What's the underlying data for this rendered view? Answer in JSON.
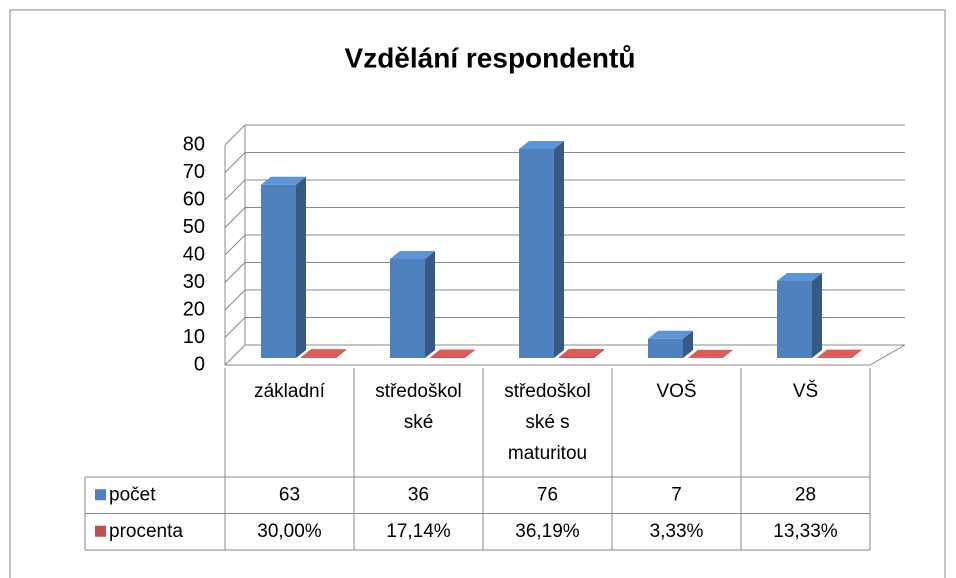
{
  "chart_data": {
    "type": "bar3d",
    "title": "Vzdělání respondentů",
    "categories": [
      "základní",
      "středoškolské",
      "středoškolské s maturitou",
      "VOŠ",
      "VŠ"
    ],
    "series": [
      {
        "name": "počet",
        "color": "#4f81bd",
        "values": [
          63,
          36,
          76,
          7,
          28
        ]
      },
      {
        "name": "procenta",
        "color": "#c0504d",
        "values": [
          0.3,
          0.1714,
          0.3619,
          0.0333,
          0.1333
        ],
        "value_labels": [
          "30,00%",
          "17,14%",
          "36,19%",
          "3,33%",
          "13,33%"
        ]
      }
    ],
    "ylim": [
      0,
      80
    ],
    "yticks": [
      0,
      10,
      20,
      30,
      40,
      50,
      60,
      70,
      80
    ],
    "grid": true,
    "data_table": true
  }
}
